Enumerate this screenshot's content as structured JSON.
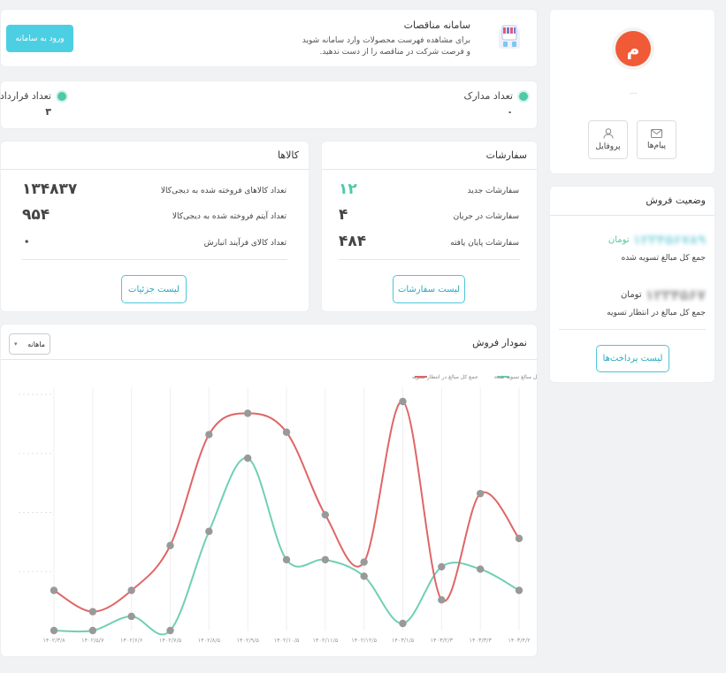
{
  "banner": {
    "title": "سامانه مناقصات",
    "line1": "برای مشاهده فهرست محصولات وارد سامانه شوید",
    "line2": "و فرصت شرکت در مناقصه را از دست ندهید.",
    "button": "ورود به سامانه"
  },
  "stats": {
    "documents_label": "تعداد مدارک",
    "documents_value": "۰",
    "contracts_label": "تعداد قرارداد",
    "contracts_value": "۳"
  },
  "products": {
    "title": "کالاها",
    "rows": [
      {
        "label": "تعداد کالاهای فروخته شده به دیجی‌کالا",
        "value": "۱۳۴۸۳۷"
      },
      {
        "label": "تعداد آیتم فروخته شده به دیجی‌کالا",
        "value": "۹۵۴"
      },
      {
        "label": "تعداد کالای فرآیند انبارش",
        "value": "۰"
      }
    ],
    "button": "لیست جزئیات"
  },
  "orders": {
    "title": "سفارشات",
    "rows": [
      {
        "label": "سفارشات جدید",
        "value": "۱۲"
      },
      {
        "label": "سفارشات در جریان",
        "value": "۴"
      },
      {
        "label": "سفارشات پایان یافته",
        "value": "۴۸۴"
      }
    ],
    "button": "لیست سفارشات"
  },
  "profile": {
    "avatar_letter": "م",
    "name": "...",
    "messages_label": "پیام‌ها",
    "profile_label": "پروفایل"
  },
  "sales_status": {
    "title": "وضعیت فروش",
    "settled_amount": "۱۲۳۴۵۶۷۸۹",
    "settled_unit": "تومان",
    "settled_label": "جمع کل مبالغ تسویه شده",
    "pending_amount": "۱۲۳۴۵۶۷",
    "pending_unit": "تومان",
    "pending_label": "جمع کل مبالغ در انتظار تسویه",
    "button": "لیست پرداخت‌ها"
  },
  "sales_chart": {
    "title": "نمودار فروش",
    "period_select": "ماهانه",
    "colors": {
      "settled": "#6fcfb5",
      "pending": "#e06666",
      "marker": "#999999"
    }
  },
  "chart_data": {
    "type": "line",
    "title": "نمودار فروش",
    "categories": [
      "۱۴۰۲/۳/۸",
      "۱۴۰۲/۵/۷",
      "۱۴۰۲/۶/۶",
      "۱۴۰۲/۷/۵",
      "۱۴۰۲/۸/۵",
      "۱۴۰۲/۹/۵",
      "۱۴۰۲/۱۰/۵",
      "۱۴۰۲/۱۱/۵",
      "۱۴۰۲/۱۲/۵",
      "۱۴۰۳/۱/۵",
      "۱۴۰۳/۲/۳",
      "۱۴۰۳/۳/۳",
      "۱۴۰۳/۴/۲"
    ],
    "series": [
      {
        "name": "جمع کل مبالغ تسویه شده",
        "values": [
          0,
          0,
          0.06,
          0,
          0.42,
          0.73,
          0.3,
          0.3,
          0.23,
          0.03,
          0.27,
          0.26,
          0.17
        ]
      },
      {
        "name": "جمع کل مبالغ در انتظار تسویه",
        "values": [
          0.17,
          0.08,
          0.17,
          0.36,
          0.83,
          0.92,
          0.84,
          0.49,
          0.29,
          0.97,
          0.13,
          0.58,
          0.39
        ]
      }
    ],
    "ylim": [
      0,
      1
    ],
    "yticks": [
      "",
      "",
      "",
      "",
      ""
    ],
    "grid": true,
    "legend": "top-left"
  }
}
